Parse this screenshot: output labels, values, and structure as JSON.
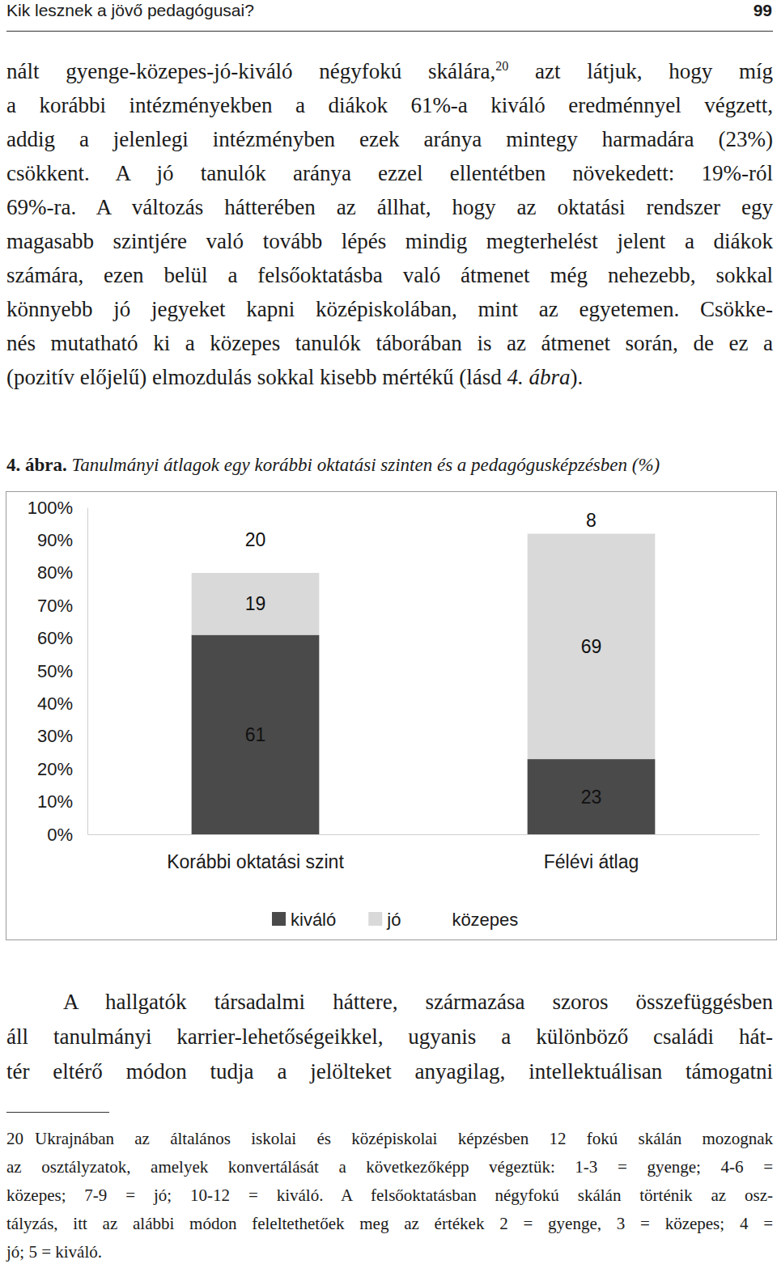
{
  "header": {
    "title": "Kik lesznek a jövő pedagógusai?",
    "page": "99"
  },
  "paragraphs": [
    {
      "lines": [
        [
          {
            "text": "nált gyenge-közepes-jó-kiváló négyfokú skálára,",
            "style": "normal"
          },
          {
            "text": "20",
            "style": "sup"
          },
          {
            "text": " azt látjuk, hogy míg",
            "style": "normal"
          }
        ],
        [
          {
            "text": "a korábbi intézményekben a diákok 61%-a kiváló eredménnyel végzett,",
            "style": "normal"
          }
        ],
        [
          {
            "text": "addig a jelenlegi intézményben ezek aránya mintegy harmadára (23%)",
            "style": "normal"
          }
        ],
        [
          {
            "text": "csökkent. A jó tanulók aránya ezzel ellentétben növekedett: 19%-ról",
            "style": "normal"
          }
        ],
        [
          {
            "text": "69%-ra. A változás hátterében az állhat, hogy az oktatási rendszer egy",
            "style": "normal"
          }
        ],
        [
          {
            "text": "magasabb szintjére való tovább lépés mindig megterhelést jelent a diákok",
            "style": "normal"
          }
        ],
        [
          {
            "text": "számára, ezen belül a felsőoktatásba való átmenet még nehezebb, sokkal",
            "style": "normal"
          }
        ],
        [
          {
            "text": "könnyebb jó jegyeket kapni középiskolában, mint az egyetemen. Csökke-",
            "style": "normal"
          }
        ],
        [
          {
            "text": "nés mutatható ki a közepes tanulók táborában is az átmenet során, de ez a",
            "style": "normal"
          }
        ],
        [
          {
            "text": "(pozitív előjelű) elmozdulás sokkal kisebb mértékű (lásd ",
            "style": "normal"
          },
          {
            "text": "4. ábra",
            "style": "italic"
          },
          {
            "text": ").",
            "style": "normal"
          }
        ]
      ]
    },
    {
      "lines": [
        [
          {
            "text": "A hallgatók társadalmi háttere, származása szoros összefüggésben",
            "style": "normal"
          }
        ],
        [
          {
            "text": "áll tanulmányi karrier-lehetőségeikkel, ugyanis a különböző családi hát-",
            "style": "normal"
          }
        ],
        [
          {
            "text": "tér eltérő módon tudja a jelölteket anyagilag, intellektuálisan támogatni",
            "style": "normal"
          }
        ]
      ]
    }
  ],
  "caption": [
    {
      "text": "4. ábra.",
      "style": "bold"
    },
    {
      "text": " Tanulmányi átlagok egy korábbi oktatási szinten és a pedagógusképzésben (%)",
      "style": "italic"
    }
  ],
  "chart_data": {
    "type": "bar",
    "stacked": true,
    "data_labels": true,
    "grid": false,
    "legend": "bottom",
    "categories": [
      "Korábbi oktatási szint",
      "Félévi átlag"
    ],
    "series": [
      {
        "name": "kiváló",
        "color": "#4a4a4a",
        "values": [
          61,
          23
        ]
      },
      {
        "name": "jó",
        "color": "#d9d9d9",
        "values": [
          19,
          69
        ]
      },
      {
        "name": "közepes",
        "color": "#ffffff",
        "values": [
          20,
          8
        ]
      }
    ],
    "ylim": [
      0,
      100
    ],
    "yticks": [
      {
        "value": 0,
        "label": "0%"
      },
      {
        "value": 10,
        "label": "10%"
      },
      {
        "value": 20,
        "label": "20%"
      },
      {
        "value": 30,
        "label": "30%"
      },
      {
        "value": 40,
        "label": "40%"
      },
      {
        "value": 50,
        "label": "50%"
      },
      {
        "value": 60,
        "label": "60%"
      },
      {
        "value": 70,
        "label": "70%"
      },
      {
        "value": 80,
        "label": "80%"
      },
      {
        "value": 90,
        "label": "90%"
      },
      {
        "value": 100,
        "label": "100%"
      }
    ]
  },
  "footnote": {
    "number": "20",
    "lines": [
      "Ukrajnában az általános iskolai és középiskolai képzésben 12 fokú skálán mozognak",
      "az osztályzatok, amelyek konvertálását a következőképp végeztük: 1-3 = gyenge; 4-6 =",
      "közepes; 7-9 = jó; 10-12 = kiváló. A felsőoktatásban négyfokú skálán történik az osz-",
      "tályzás, itt az alábbi módon feleltethetőek meg az értékek 2 = gyenge, 3 = közepes; 4 =",
      "jó; 5 = kiváló."
    ]
  }
}
